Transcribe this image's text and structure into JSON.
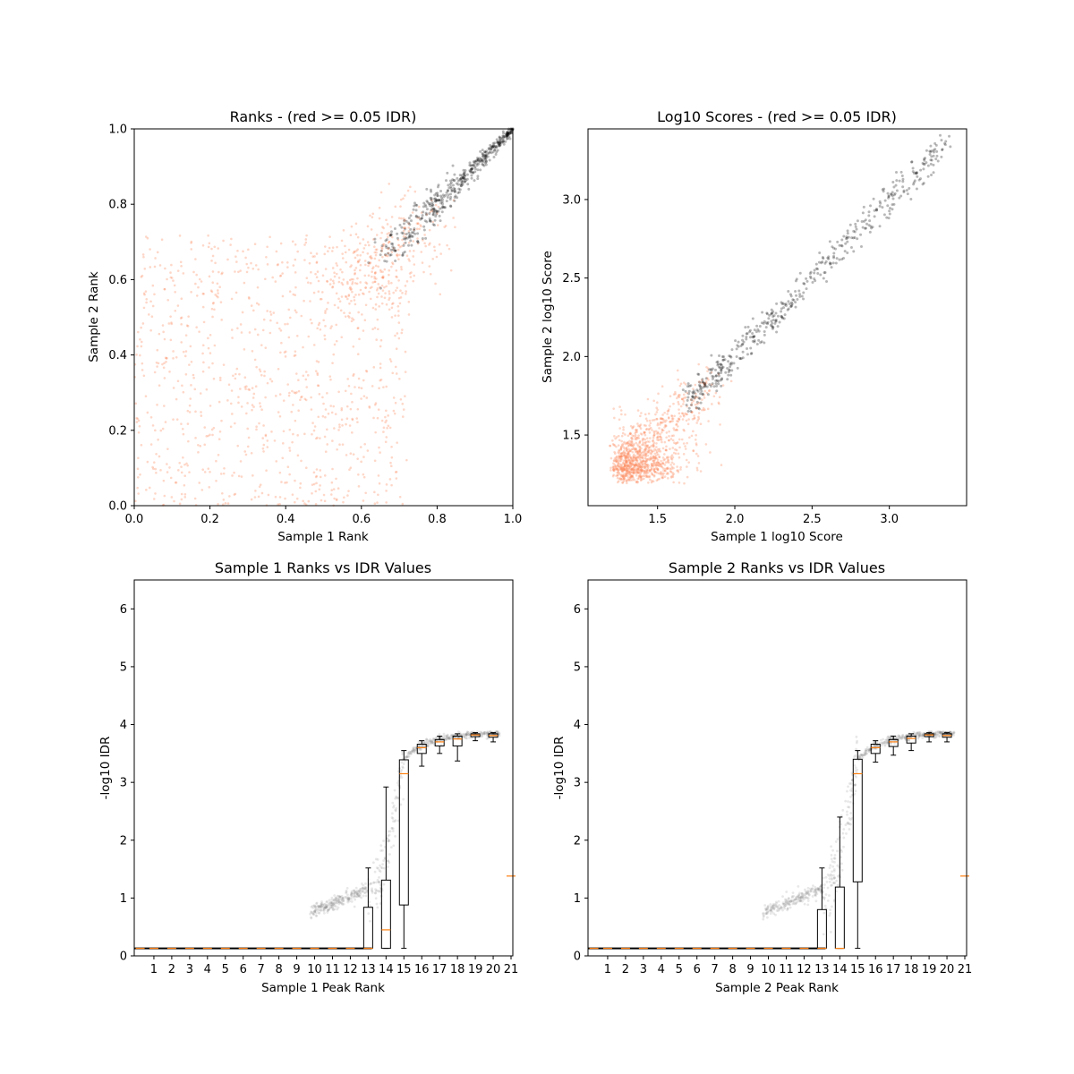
{
  "colors": {
    "red_points": "#fc8d62",
    "black_points": "#000000",
    "box": "#000000",
    "median": "#ff7f0e",
    "grey_points": "#808080",
    "background": "#ffffff"
  },
  "chart_data": [
    {
      "type": "scatter",
      "title": "Ranks - (red >= 0.05 IDR)",
      "xlabel": "Sample 1 Rank",
      "ylabel": "Sample 2 Rank",
      "xlim": [
        0.0,
        1.0
      ],
      "ylim": [
        0.0,
        1.0
      ],
      "xticks": [
        "0.0",
        "0.2",
        "0.4",
        "0.6",
        "0.8",
        "1.0"
      ],
      "yticks": [
        "0.0",
        "0.2",
        "0.4",
        "0.6",
        "0.8",
        "1.0"
      ],
      "series": [
        {
          "color_key": "red_points",
          "description_points": "uniform cloud x 0-0.72, y 0-0.72 plus transition band",
          "points": [
            [
              0.05,
              0.45
            ],
            [
              0.12,
              0.3
            ],
            [
              0.2,
              0.55
            ],
            [
              0.33,
              0.62
            ],
            [
              0.45,
              0.2
            ],
            [
              0.55,
              0.4
            ],
            [
              0.62,
              0.65
            ],
            [
              0.68,
              0.7
            ]
          ]
        },
        {
          "color_key": "black_points",
          "points": [
            [
              0.7,
              0.72
            ],
            [
              0.78,
              0.78
            ],
            [
              0.85,
              0.86
            ],
            [
              0.9,
              0.9
            ],
            [
              0.95,
              0.95
            ],
            [
              1.0,
              1.0
            ]
          ]
        }
      ]
    },
    {
      "type": "scatter",
      "title": "Log10 Scores - (red >= 0.05 IDR)",
      "xlabel": "Sample 1 log10 Score",
      "ylabel": "Sample 2 log10 Score",
      "xlim": [
        1.05,
        3.5
      ],
      "ylim": [
        1.05,
        3.45
      ],
      "xticks": [
        "1.5",
        "2.0",
        "2.5",
        "3.0"
      ],
      "yticks": [
        "1.5",
        "2.0",
        "2.5",
        "3.0"
      ],
      "series": [
        {
          "color_key": "red_points",
          "points": [
            [
              1.2,
              1.2
            ],
            [
              1.3,
              1.35
            ],
            [
              1.4,
              1.3
            ],
            [
              1.5,
              1.5
            ],
            [
              1.6,
              1.55
            ],
            [
              1.7,
              1.75
            ]
          ]
        },
        {
          "color_key": "black_points",
          "points": [
            [
              1.75,
              1.75
            ],
            [
              2.0,
              2.0
            ],
            [
              2.3,
              2.3
            ],
            [
              2.6,
              2.65
            ],
            [
              3.0,
              3.0
            ],
            [
              3.38,
              3.37
            ]
          ]
        }
      ]
    },
    {
      "type": "box",
      "title": "Sample 1 Ranks vs IDR Values",
      "xlabel": "Sample 1 Peak Rank",
      "ylabel": "-log10 IDR",
      "ylim": [
        0,
        6.5
      ],
      "yticks": [
        "0",
        "1",
        "2",
        "3",
        "4",
        "5",
        "6"
      ],
      "categories": [
        "1",
        "2",
        "3",
        "4",
        "5",
        "6",
        "7",
        "8",
        "9",
        "10",
        "11",
        "12",
        "13",
        "14",
        "15",
        "16",
        "17",
        "18",
        "19",
        "20",
        "21"
      ],
      "boxes": [
        {
          "pos": 0.23,
          "lw": 0.13,
          "q1": 0.13,
          "med": 0.13,
          "q3": 0.13,
          "hw": 0.13
        },
        {
          "pos": 1,
          "lw": 0.13,
          "q1": 0.13,
          "med": 0.13,
          "q3": 0.13,
          "hw": 0.13
        },
        {
          "pos": 2,
          "lw": 0.13,
          "q1": 0.13,
          "med": 0.13,
          "q3": 0.13,
          "hw": 0.13
        },
        {
          "pos": 3,
          "lw": 0.13,
          "q1": 0.13,
          "med": 0.13,
          "q3": 0.13,
          "hw": 0.13
        },
        {
          "pos": 4,
          "lw": 0.13,
          "q1": 0.13,
          "med": 0.13,
          "q3": 0.13,
          "hw": 0.13
        },
        {
          "pos": 5,
          "lw": 0.13,
          "q1": 0.13,
          "med": 0.13,
          "q3": 0.13,
          "hw": 0.13
        },
        {
          "pos": 6,
          "lw": 0.13,
          "q1": 0.13,
          "med": 0.13,
          "q3": 0.13,
          "hw": 0.13
        },
        {
          "pos": 7,
          "lw": 0.13,
          "q1": 0.13,
          "med": 0.13,
          "q3": 0.13,
          "hw": 0.13
        },
        {
          "pos": 8,
          "lw": 0.13,
          "q1": 0.13,
          "med": 0.13,
          "q3": 0.13,
          "hw": 0.13
        },
        {
          "pos": 9,
          "lw": 0.13,
          "q1": 0.13,
          "med": 0.13,
          "q3": 0.13,
          "hw": 0.13
        },
        {
          "pos": 10,
          "lw": 0.13,
          "q1": 0.13,
          "med": 0.13,
          "q3": 0.13,
          "hw": 0.13
        },
        {
          "pos": 11,
          "lw": 0.13,
          "q1": 0.13,
          "med": 0.13,
          "q3": 0.13,
          "hw": 0.13
        },
        {
          "pos": 12,
          "lw": 0.13,
          "q1": 0.13,
          "med": 0.13,
          "q3": 0.13,
          "hw": 0.13
        },
        {
          "pos": 13,
          "lw": 0.13,
          "q1": 0.13,
          "med": 0.13,
          "q3": 0.84,
          "hw": 1.52
        },
        {
          "pos": 14,
          "lw": 0.13,
          "q1": 0.13,
          "med": 0.45,
          "q3": 1.31,
          "hw": 2.92
        },
        {
          "pos": 15,
          "lw": 0.13,
          "q1": 0.88,
          "med": 3.15,
          "q3": 3.39,
          "hw": 3.55
        },
        {
          "pos": 16,
          "lw": 3.28,
          "q1": 3.5,
          "med": 3.6,
          "q3": 3.66,
          "hw": 3.72
        },
        {
          "pos": 17,
          "lw": 3.5,
          "q1": 3.63,
          "med": 3.7,
          "q3": 3.74,
          "hw": 3.8
        },
        {
          "pos": 18,
          "lw": 3.37,
          "q1": 3.63,
          "med": 3.75,
          "q3": 3.8,
          "hw": 3.84
        },
        {
          "pos": 19,
          "lw": 3.72,
          "q1": 3.79,
          "med": 3.82,
          "q3": 3.84,
          "hw": 3.86
        },
        {
          "pos": 20,
          "lw": 3.7,
          "q1": 3.78,
          "med": 3.81,
          "q3": 3.84,
          "hw": 3.86
        },
        {
          "pos": 21,
          "lw": 1.38,
          "q1": 1.38,
          "med": 1.38,
          "q3": 1.38,
          "hw": 1.38
        }
      ]
    },
    {
      "type": "box",
      "title": "Sample 2 Ranks vs IDR Values",
      "xlabel": "Sample 2 Peak Rank",
      "ylabel": "-log10 IDR",
      "ylim": [
        0,
        6.5
      ],
      "yticks": [
        "0",
        "1",
        "2",
        "3",
        "4",
        "5",
        "6"
      ],
      "categories": [
        "1",
        "2",
        "3",
        "4",
        "5",
        "6",
        "7",
        "8",
        "9",
        "10",
        "11",
        "12",
        "13",
        "14",
        "15",
        "16",
        "17",
        "18",
        "19",
        "20",
        "21"
      ],
      "boxes": [
        {
          "pos": 0.23,
          "lw": 0.13,
          "q1": 0.13,
          "med": 0.13,
          "q3": 0.13,
          "hw": 0.13
        },
        {
          "pos": 1,
          "lw": 0.13,
          "q1": 0.13,
          "med": 0.13,
          "q3": 0.13,
          "hw": 0.13
        },
        {
          "pos": 2,
          "lw": 0.13,
          "q1": 0.13,
          "med": 0.13,
          "q3": 0.13,
          "hw": 0.13
        },
        {
          "pos": 3,
          "lw": 0.13,
          "q1": 0.13,
          "med": 0.13,
          "q3": 0.13,
          "hw": 0.13
        },
        {
          "pos": 4,
          "lw": 0.13,
          "q1": 0.13,
          "med": 0.13,
          "q3": 0.13,
          "hw": 0.13
        },
        {
          "pos": 5,
          "lw": 0.13,
          "q1": 0.13,
          "med": 0.13,
          "q3": 0.13,
          "hw": 0.13
        },
        {
          "pos": 6,
          "lw": 0.13,
          "q1": 0.13,
          "med": 0.13,
          "q3": 0.13,
          "hw": 0.13
        },
        {
          "pos": 7,
          "lw": 0.13,
          "q1": 0.13,
          "med": 0.13,
          "q3": 0.13,
          "hw": 0.13
        },
        {
          "pos": 8,
          "lw": 0.13,
          "q1": 0.13,
          "med": 0.13,
          "q3": 0.13,
          "hw": 0.13
        },
        {
          "pos": 9,
          "lw": 0.13,
          "q1": 0.13,
          "med": 0.13,
          "q3": 0.13,
          "hw": 0.13
        },
        {
          "pos": 10,
          "lw": 0.13,
          "q1": 0.13,
          "med": 0.13,
          "q3": 0.13,
          "hw": 0.13
        },
        {
          "pos": 11,
          "lw": 0.13,
          "q1": 0.13,
          "med": 0.13,
          "q3": 0.13,
          "hw": 0.13
        },
        {
          "pos": 12,
          "lw": 0.13,
          "q1": 0.13,
          "med": 0.13,
          "q3": 0.13,
          "hw": 0.13
        },
        {
          "pos": 13,
          "lw": 0.13,
          "q1": 0.13,
          "med": 0.13,
          "q3": 0.8,
          "hw": 1.52
        },
        {
          "pos": 14,
          "lw": 0.13,
          "q1": 0.13,
          "med": 0.13,
          "q3": 1.19,
          "hw": 2.4
        },
        {
          "pos": 15,
          "lw": 0.13,
          "q1": 1.28,
          "med": 3.15,
          "q3": 3.4,
          "hw": 3.55
        },
        {
          "pos": 16,
          "lw": 3.35,
          "q1": 3.5,
          "med": 3.6,
          "q3": 3.66,
          "hw": 3.72
        },
        {
          "pos": 17,
          "lw": 3.47,
          "q1": 3.62,
          "med": 3.7,
          "q3": 3.74,
          "hw": 3.8
        },
        {
          "pos": 18,
          "lw": 3.55,
          "q1": 3.68,
          "med": 3.76,
          "q3": 3.8,
          "hw": 3.84
        },
        {
          "pos": 19,
          "lw": 3.7,
          "q1": 3.79,
          "med": 3.82,
          "q3": 3.84,
          "hw": 3.86
        },
        {
          "pos": 20,
          "lw": 3.7,
          "q1": 3.78,
          "med": 3.81,
          "q3": 3.84,
          "hw": 3.86
        },
        {
          "pos": 21,
          "lw": 1.38,
          "q1": 1.38,
          "med": 1.38,
          "q3": 1.38,
          "hw": 1.38
        }
      ]
    }
  ]
}
